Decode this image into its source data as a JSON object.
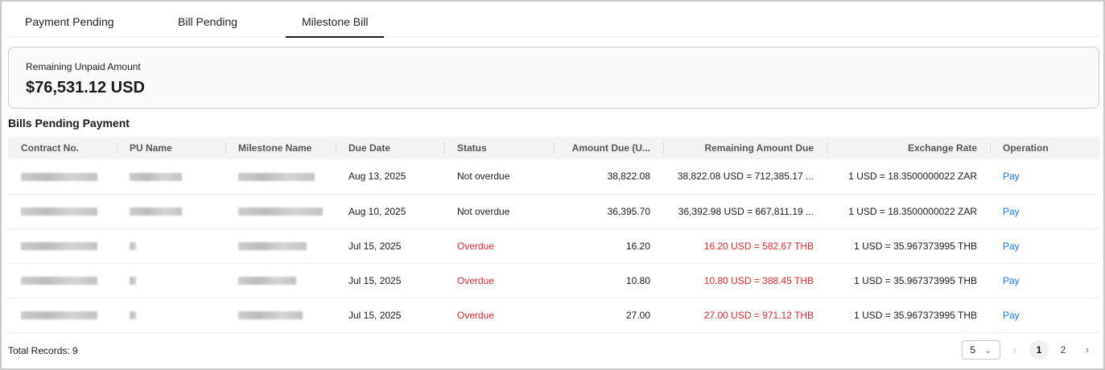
{
  "tabs": [
    {
      "label": "Payment Pending"
    },
    {
      "label": "Bill Pending"
    },
    {
      "label": "Milestone Bill",
      "active": true
    }
  ],
  "summary": {
    "label": "Remaining Unpaid Amount",
    "value": "$76,531.12 USD"
  },
  "section_title": "Bills Pending Payment",
  "columns": [
    "Contract No.",
    "PU Name",
    "Milestone Name",
    "Due Date",
    "Status",
    "Amount Due  (U...",
    "Remaining Amount Due",
    "Exchange Rate",
    "Operation"
  ],
  "rows": [
    {
      "due_date": "Aug 13, 2025",
      "status": "Not overdue",
      "amount": "38,822.08",
      "remaining": "38,822.08 USD = 712,385.17 ...",
      "rate": "1 USD = 18.3500000022 ZAR",
      "op": "Pay",
      "overdue": false
    },
    {
      "due_date": "Aug 10, 2025",
      "status": "Not overdue",
      "amount": "36,395.70",
      "remaining": "36,392.98 USD = 667,811.19 ...",
      "rate": "1 USD = 18.3500000022 ZAR",
      "op": "Pay",
      "overdue": false
    },
    {
      "due_date": "Jul 15, 2025",
      "status": "Overdue",
      "amount": "16.20",
      "remaining": "16.20 USD = 582.67 THB",
      "rate": "1 USD = 35.967373995 THB",
      "op": "Pay",
      "overdue": true
    },
    {
      "due_date": "Jul 15, 2025",
      "status": "Overdue",
      "amount": "10.80",
      "remaining": "10.80 USD = 388.45 THB",
      "rate": "1 USD = 35.967373995 THB",
      "op": "Pay",
      "overdue": true
    },
    {
      "due_date": "Jul 15, 2025",
      "status": "Overdue",
      "amount": "27.00",
      "remaining": "27.00 USD = 971.12 THB",
      "rate": "1 USD = 35.967373995 THB",
      "op": "Pay",
      "overdue": true
    }
  ],
  "footer": {
    "total": "Total Records: 9",
    "page_size": "5",
    "pages": [
      "1",
      "2"
    ],
    "current_page": "1"
  },
  "colors": {
    "overdue": "#e8262e",
    "link": "#1677ff"
  }
}
